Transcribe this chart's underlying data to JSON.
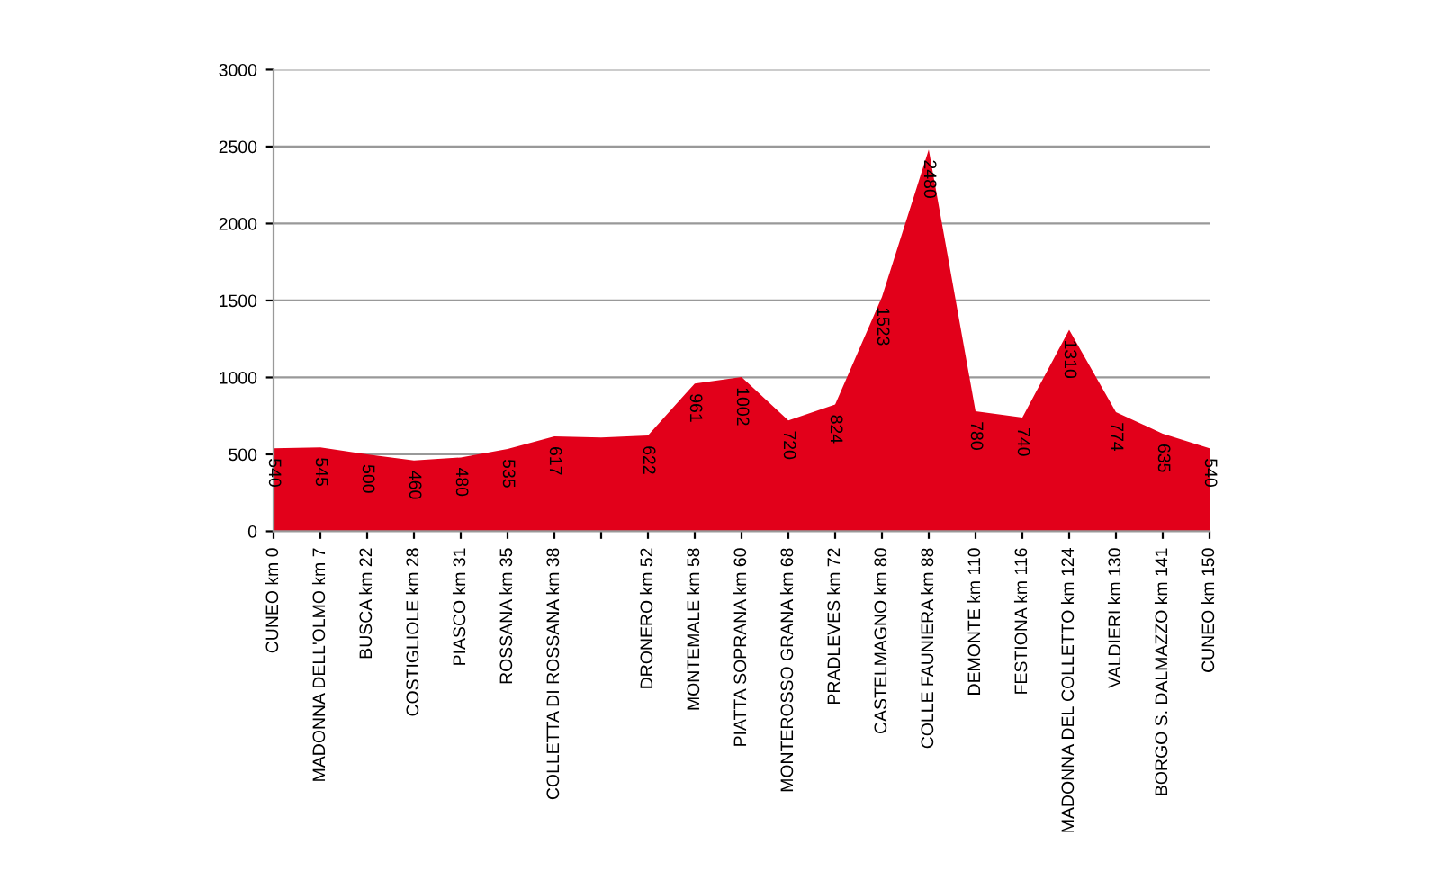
{
  "chart_data": {
    "type": "area",
    "categories": [
      "CUNEO km 0",
      "MADONNA DELL'OLMO km 7",
      "BUSCA km 22",
      "COSTIGLIOLE km 28",
      "PIASCO km 31",
      "ROSSANA km 35",
      "COLLETTA DI ROSSANA km 38",
      null,
      "DRONERO km 52",
      "MONTEMALE km 58",
      "PIATTA SOPRANA km 60",
      "MONTEROSSO GRANA km 68",
      "PRADLEVES km 72",
      "CASTELMAGNO km 80",
      "COLLE FAUNIERA km 88",
      "DEMONTE km 110",
      "FESTIONA km 116",
      "MADONNA DEL COLLETTO km 124",
      "VALDIERI km 130",
      "BORGO S. DALMAZZO km 141",
      "CUNEO km 150"
    ],
    "series": [
      {
        "color": "#e2001a",
        "values": [
          540,
          545,
          500,
          460,
          480,
          535,
          617,
          610,
          622,
          961,
          1002,
          720,
          824,
          1523,
          2480,
          780,
          740,
          1310,
          774,
          635,
          540
        ],
        "value_labels": [
          "540",
          "545",
          "500",
          "460",
          "480",
          "535",
          "617",
          null,
          "622",
          "961",
          "1002",
          "720",
          "824",
          "1523",
          "2480",
          "780",
          "740",
          "1310",
          "774",
          "635",
          "540"
        ]
      }
    ],
    "ylim": [
      0,
      3000
    ],
    "yticks": [
      0,
      500,
      1000,
      1500,
      2000,
      2500,
      3000
    ],
    "grid": "y",
    "legend": false
  }
}
